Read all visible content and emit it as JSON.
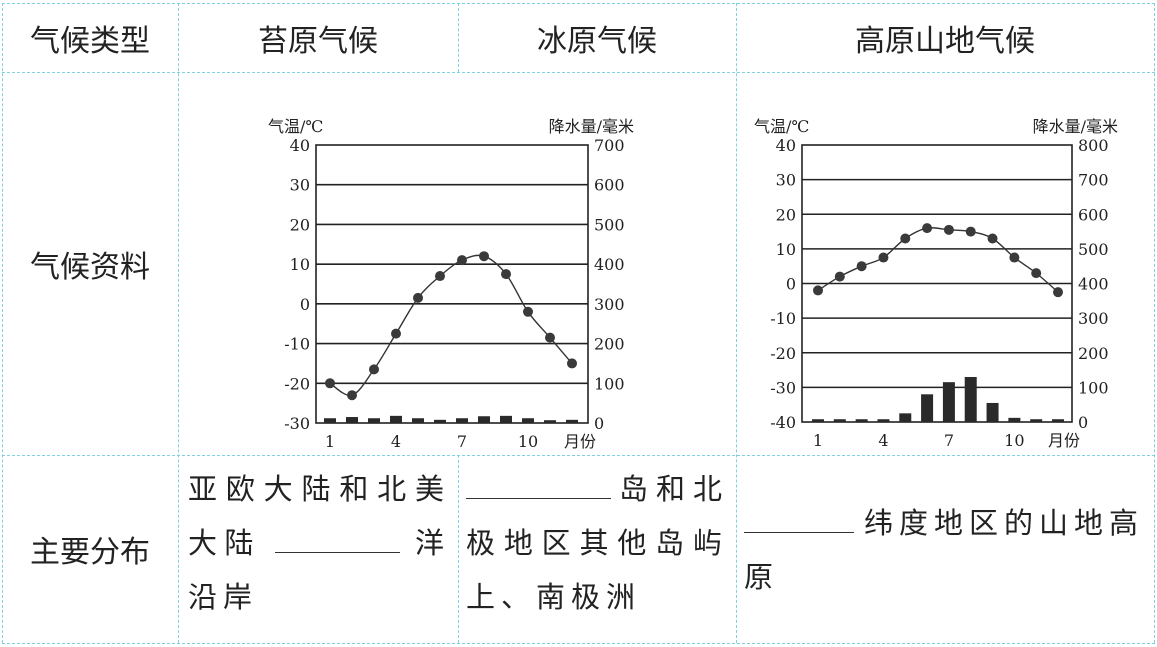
{
  "table": {
    "header": {
      "row_label": "气候类型",
      "columns": [
        "苔原气候",
        "冰原气候",
        "高原山地气候"
      ]
    },
    "row_data_label": "气候资料",
    "row_distribution_label": "主要分布",
    "distribution": {
      "tundra": {
        "before": "亚欧大陆和北美大陆",
        "after": "洋沿岸"
      },
      "icecap": {
        "before": "",
        "after": "岛和北极地区其他岛屿上、南极洲"
      },
      "highland": {
        "before": "",
        "after": "纬度地区的山地高原"
      }
    }
  },
  "chart_data": [
    {
      "type": "bar+line",
      "left_axis_label": "气温/℃",
      "right_axis_label": "降水量/毫米",
      "x_label": "月份",
      "x_ticks": [
        "1",
        "4",
        "7",
        "10"
      ],
      "months": [
        1,
        2,
        3,
        4,
        5,
        6,
        7,
        8,
        9,
        10,
        11,
        12
      ],
      "temperature_ylim": [
        -30,
        40
      ],
      "temperature_ticks": [
        "40",
        "30",
        "20",
        "10",
        "0",
        "-10",
        "-20",
        "-30"
      ],
      "precip_ylim": [
        0,
        700
      ],
      "precip_ticks": [
        "700",
        "600",
        "500",
        "400",
        "300",
        "200",
        "100",
        "0"
      ],
      "grid": true,
      "temperature": [
        -20,
        -23,
        -16.5,
        -7.5,
        1.5,
        7,
        11,
        12,
        7.5,
        -2,
        -8.5,
        -15
      ],
      "precipitation": [
        12,
        15,
        12,
        18,
        12,
        8,
        12,
        17,
        18,
        12,
        7,
        8
      ]
    },
    {
      "type": "bar+line",
      "left_axis_label": "气温/℃",
      "right_axis_label": "降水量/毫米",
      "x_label": "月份",
      "x_ticks": [
        "1",
        "4",
        "7",
        "10"
      ],
      "months": [
        1,
        2,
        3,
        4,
        5,
        6,
        7,
        8,
        9,
        10,
        11,
        12
      ],
      "temperature_ylim": [
        -40,
        40
      ],
      "temperature_ticks": [
        "40",
        "30",
        "20",
        "10",
        "0",
        "-10",
        "-20",
        "-30",
        "-40"
      ],
      "precip_ylim": [
        0,
        800
      ],
      "precip_ticks": [
        "800",
        "700",
        "600",
        "500",
        "400",
        "300",
        "200",
        "100",
        "0"
      ],
      "grid": true,
      "temperature": [
        -2,
        2,
        5,
        7.5,
        13,
        16,
        15.5,
        15,
        13,
        7.5,
        3,
        -2.5
      ],
      "precipitation": [
        8,
        8,
        8,
        8,
        25,
        80,
        115,
        130,
        55,
        12,
        8,
        8
      ]
    }
  ]
}
